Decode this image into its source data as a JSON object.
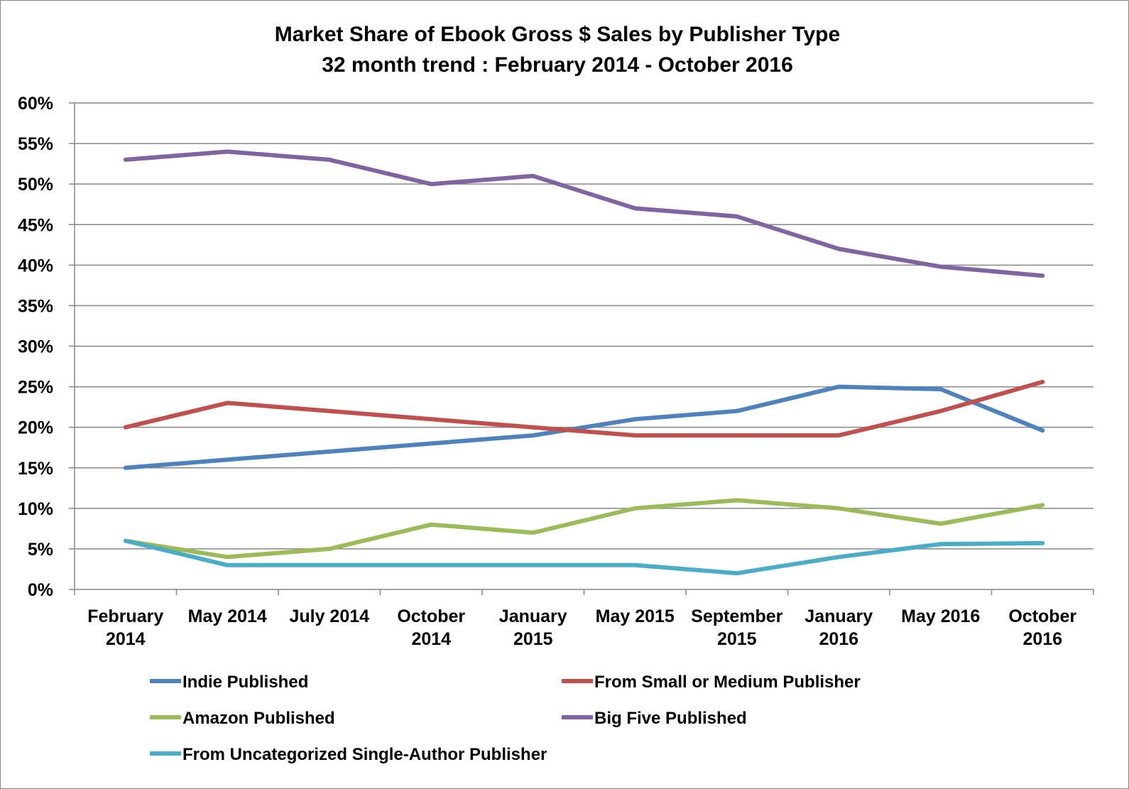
{
  "chart_data": {
    "type": "line",
    "title": "Market Share of Ebook Gross $ Sales by Publisher Type",
    "subtitle": "32 month trend : February 2014 - October 2016",
    "categories": [
      [
        "February",
        "2014"
      ],
      [
        "May 2014"
      ],
      [
        "July 2014"
      ],
      [
        "October",
        "2014"
      ],
      [
        "January",
        "2015"
      ],
      [
        "May 2015"
      ],
      [
        "September",
        "2015"
      ],
      [
        "January",
        "2016"
      ],
      [
        "May 2016"
      ],
      [
        "October",
        "2016"
      ]
    ],
    "ylim": [
      0,
      60
    ],
    "y_step": 5,
    "y_tick_suffix": "%",
    "grid": true,
    "legend_position": "bottom",
    "series": [
      {
        "name": "Indie Published",
        "color": "#4f81bd",
        "values": [
          15,
          16,
          17,
          18,
          19,
          21,
          22,
          25,
          24.7,
          19.6
        ]
      },
      {
        "name": "From Small or Medium Publisher",
        "color": "#c0504d",
        "values": [
          20,
          23,
          22,
          21,
          20,
          19,
          19,
          19,
          22,
          25.6
        ]
      },
      {
        "name": "Amazon Published",
        "color": "#9bbb59",
        "values": [
          6,
          4,
          5,
          8,
          7,
          10,
          11,
          10,
          8.1,
          10.4
        ]
      },
      {
        "name": "Big Five Published",
        "color": "#8064a2",
        "values": [
          53,
          54,
          53,
          50,
          51,
          47,
          46,
          42,
          39.8,
          38.7
        ]
      },
      {
        "name": "From Uncategorized Single-Author Publisher",
        "color": "#4bacc6",
        "values": [
          6,
          3,
          3,
          3,
          3,
          3,
          2,
          4,
          5.6,
          5.7
        ]
      }
    ]
  }
}
